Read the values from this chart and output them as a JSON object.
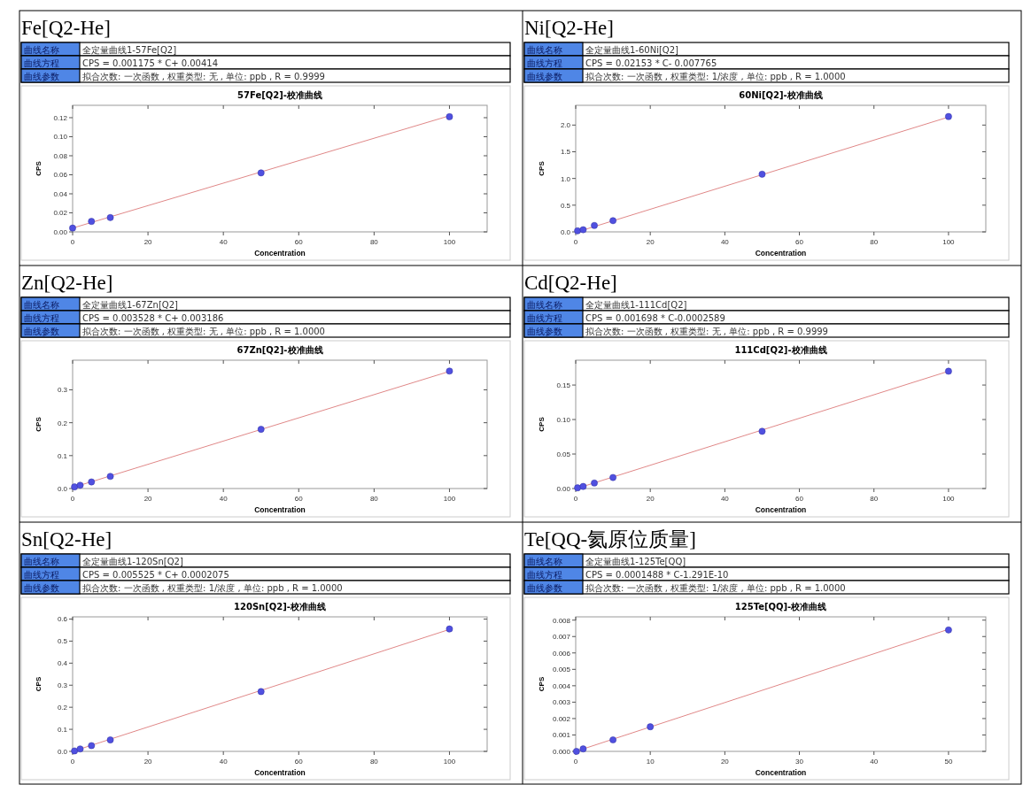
{
  "chart_data": [
    {
      "type": "scatter",
      "title": "Fe[Q2-He]",
      "subtitle": "57Fe[Q2]-校准曲线",
      "xlabel": "Concentration",
      "ylabel": "CPS",
      "annotations": [
        "曲线名称",
        "全定量曲线1-57Fe[Q2]",
        "曲线方程",
        "CPS = 0.001175 * C+ 0.00414",
        "曲线参数",
        "拟合次数: 一次函数 , 权重类型: 无 , 单位: ppb , R = 0.9999"
      ],
      "xlim": [
        0,
        110
      ],
      "xticks": [
        0,
        20,
        40,
        60,
        80,
        100
      ],
      "ylim": [
        0,
        0.133
      ],
      "yticks": [
        {
          "value": 0,
          "label": "0.00"
        },
        0.02,
        0.04,
        0.06,
        0.08,
        {
          "value": 0.1,
          "label": "0.10"
        },
        0.12
      ],
      "series": [
        {
          "marker": "circle",
          "color": "#5050e0",
          "x": [
            0,
            5,
            10,
            50,
            100
          ],
          "values": [
            0.004,
            0.011,
            0.015,
            0.062,
            0.121
          ]
        },
        {
          "type": "line",
          "color": "#e08888",
          "x": [
            0,
            100
          ],
          "values": [
            0.004,
            0.122
          ]
        }
      ]
    },
    {
      "type": "scatter",
      "title": "Ni[Q2-He]",
      "subtitle": "60Ni[Q2]-校准曲线",
      "xlabel": "Concentration",
      "ylabel": "CPS",
      "annotations": [
        "曲线名称",
        "全定量曲线1-60Ni[Q2]",
        "曲线方程",
        "CPS = 0.02153 * C- 0.007765",
        "曲线参数",
        "拟合次数: 一次函数 , 权重类型: 1/浓度 , 单位: ppb , R = 1.0000"
      ],
      "xlim": [
        0,
        110
      ],
      "xticks": [
        0,
        20,
        40,
        60,
        80,
        100
      ],
      "ylim": [
        0,
        2.37
      ],
      "yticks": [
        {
          "value": 0,
          "label": "0.0"
        },
        0.5,
        {
          "value": 1,
          "label": "1.0"
        },
        1.5,
        {
          "value": 2,
          "label": "2.0"
        }
      ],
      "series": [
        {
          "marker": "circle",
          "color": "#5050e0",
          "x": [
            0.5,
            2,
            5,
            10,
            50,
            100
          ],
          "values": [
            0.02,
            0.04,
            0.12,
            0.21,
            1.08,
            2.16
          ]
        },
        {
          "type": "line",
          "color": "#e08888",
          "x": [
            0.4,
            100
          ],
          "values": [
            0,
            2.15
          ]
        }
      ]
    },
    {
      "type": "scatter",
      "title": "Zn[Q2-He]",
      "subtitle": "67Zn[Q2]-校准曲线",
      "xlabel": "Concentration",
      "ylabel": "CPS",
      "annotations": [
        "曲线名称",
        "全定量曲线1-67Zn[Q2]",
        "曲线方程",
        "CPS = 0.003528 * C+ 0.003186",
        "曲线参数",
        "拟合次数: 一次函数 , 权重类型: 无 , 单位: ppb , R = 1.0000"
      ],
      "xlim": [
        0,
        110
      ],
      "xticks": [
        0,
        20,
        40,
        60,
        80,
        100
      ],
      "ylim": [
        0,
        0.39
      ],
      "yticks": [
        {
          "value": 0,
          "label": "0.0"
        },
        0.1,
        0.2,
        0.3
      ],
      "series": [
        {
          "marker": "circle",
          "color": "#5050e0",
          "x": [
            0.5,
            2,
            5,
            10,
            50,
            100
          ],
          "values": [
            0.005,
            0.01,
            0.02,
            0.037,
            0.18,
            0.357
          ]
        },
        {
          "type": "line",
          "color": "#e08888",
          "x": [
            0,
            100
          ],
          "values": [
            0.003,
            0.356
          ]
        }
      ]
    },
    {
      "type": "scatter",
      "title": "Cd[Q2-He]",
      "subtitle": "111Cd[Q2]-校准曲线",
      "xlabel": "Concentration",
      "ylabel": "CPS",
      "annotations": [
        "曲线名称",
        "全定量曲线1-111Cd[Q2]",
        "曲线方程",
        "CPS = 0.001698 * C-0.0002589",
        "曲线参数",
        "拟合次数: 一次函数 , 权重类型: 无 , 单位: ppb , R = 0.9999"
      ],
      "xlim": [
        0,
        110
      ],
      "xticks": [
        0,
        20,
        40,
        60,
        80,
        100
      ],
      "ylim": [
        0,
        0.186
      ],
      "yticks": [
        {
          "value": 0,
          "label": "0.00"
        },
        0.05,
        {
          "value": 0.1,
          "label": "0.10"
        },
        0.15
      ],
      "series": [
        {
          "marker": "circle",
          "color": "#5050e0",
          "x": [
            0.5,
            2,
            5,
            10,
            50,
            100
          ],
          "values": [
            0.001,
            0.003,
            0.008,
            0.016,
            0.083,
            0.17
          ]
        },
        {
          "type": "line",
          "color": "#e08888",
          "x": [
            0.2,
            100
          ],
          "values": [
            0,
            0.17
          ]
        }
      ]
    },
    {
      "type": "scatter",
      "title": "Sn[Q2-He]",
      "subtitle": "120Sn[Q2]-校准曲线",
      "xlabel": "Concentration",
      "ylabel": "CPS",
      "annotations": [
        "曲线名称",
        "全定量曲线1-120Sn[Q2]",
        "曲线方程",
        "CPS = 0.005525 * C+ 0.0002075",
        "曲线参数",
        "拟合次数: 一次函数 , 权重类型: 1/浓度 , 单位: ppb , R = 1.0000"
      ],
      "xlim": [
        0,
        110
      ],
      "xticks": [
        0,
        20,
        40,
        60,
        80,
        100
      ],
      "ylim": [
        0,
        0.61
      ],
      "yticks": [
        {
          "value": 0,
          "label": "0.0"
        },
        0.1,
        0.2,
        0.3,
        0.4,
        0.5,
        0.6
      ],
      "series": [
        {
          "marker": "circle",
          "color": "#5050e0",
          "x": [
            0.5,
            2,
            5,
            10,
            50,
            100
          ],
          "values": [
            0.002,
            0.011,
            0.026,
            0.052,
            0.271,
            0.555
          ]
        },
        {
          "type": "line",
          "color": "#e08888",
          "x": [
            0,
            100
          ],
          "values": [
            0,
            0.553
          ]
        }
      ]
    },
    {
      "type": "scatter",
      "title": "Te[QQ-氦原位质量]",
      "subtitle": "125Te[QQ]-校准曲线",
      "xlabel": "Concentration",
      "ylabel": "CPS",
      "annotations": [
        "曲线名称",
        "全定量曲线1-125Te[QQ]",
        "曲线方程",
        "CPS = 0.0001488 * C-1.291E-10",
        "曲线参数",
        "拟合次数: 一次函数 , 权重类型: 1/浓度 , 单位: ppb , R = 1.0000"
      ],
      "xlim": [
        0,
        55
      ],
      "xticks": [
        0,
        10,
        20,
        30,
        40,
        50
      ],
      "ylim": [
        0,
        0.0082
      ],
      "yticks": [
        {
          "value": 0,
          "label": "0.000"
        },
        0.001,
        0.002,
        0.003,
        0.004,
        0.005,
        0.006,
        0.007,
        {
          "value": 0.008,
          "label": "0.008"
        }
      ],
      "series": [
        {
          "marker": "circle",
          "color": "#5050e0",
          "x": [
            0.1,
            1,
            5,
            10,
            50
          ],
          "values": [
            0,
            0.00015,
            0.0007,
            0.0015,
            0.0074
          ]
        },
        {
          "type": "line",
          "color": "#e08888",
          "x": [
            0,
            50
          ],
          "values": [
            0,
            0.00744
          ]
        }
      ]
    }
  ]
}
